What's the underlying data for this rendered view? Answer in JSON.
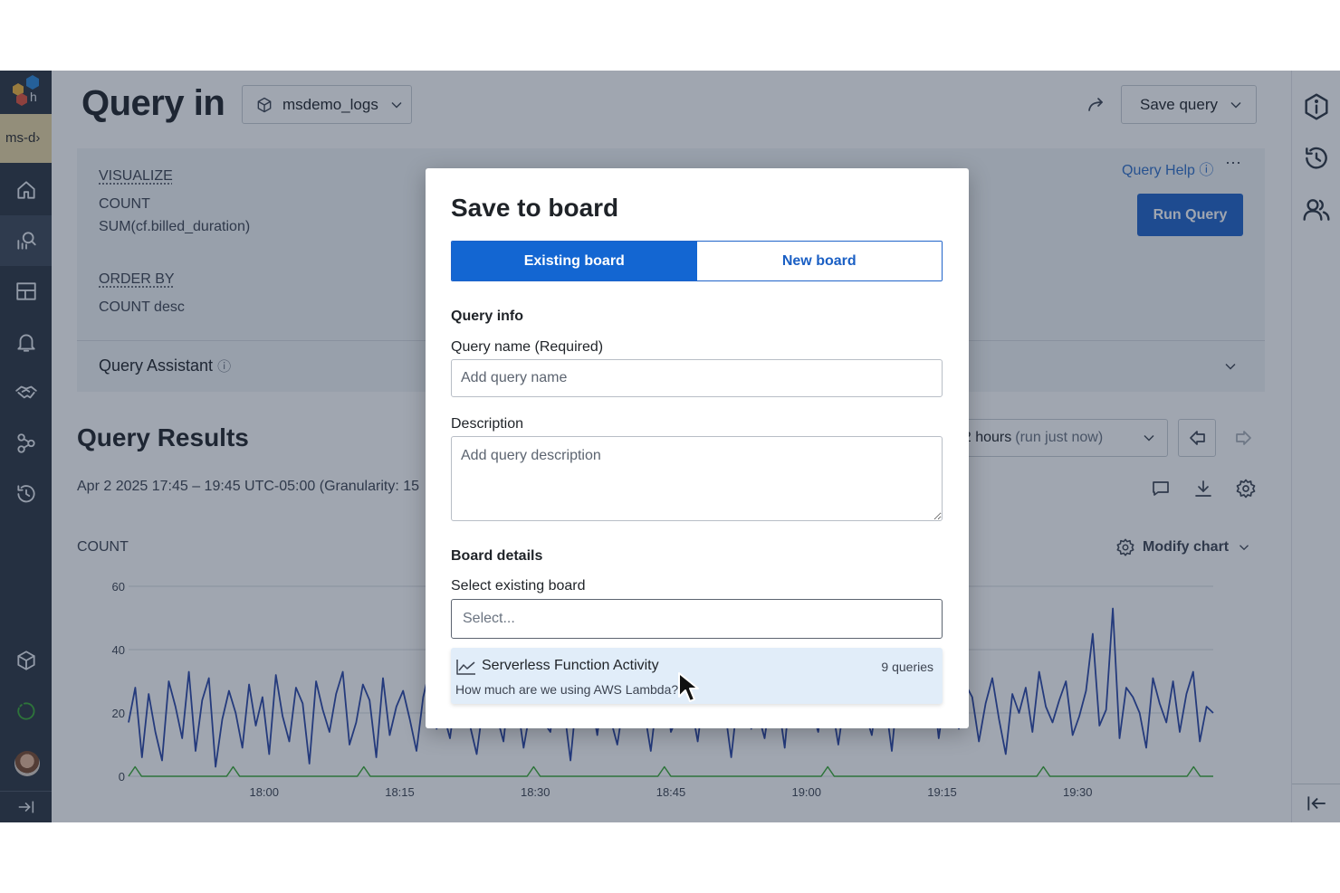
{
  "brand": {
    "env_tag": "ms-d"
  },
  "header": {
    "title": "Query in",
    "dataset": "msdemo_logs",
    "save_query_label": "Save query"
  },
  "builder": {
    "visualize_label": "VISUALIZE",
    "visualize_values": [
      "COUNT",
      "SUM(cf.billed_duration)"
    ],
    "order_by_label": "ORDER BY",
    "order_by_values": [
      "COUNT desc"
    ],
    "query_help_label": "Query Help",
    "run_query_label": "Run Query",
    "query_assistant_label": "Query Assistant"
  },
  "results": {
    "title": "Query Results",
    "range_text": "Apr 2 2025 17:45 – 19:45 UTC-05:00 (Granularity: 15",
    "time_range": "t 2 hours",
    "time_range_note": "(run just now)",
    "count_label": "COUNT",
    "modify_chart_label": "Modify chart"
  },
  "modal": {
    "title": "Save to board",
    "tabs": [
      "Existing board",
      "New board"
    ],
    "active_tab": "Existing board",
    "query_info_heading": "Query info",
    "query_name_label": "Query name (Required)",
    "query_name_placeholder": "Add query name",
    "description_label": "Description",
    "description_placeholder": "Add query description",
    "board_details_heading": "Board details",
    "select_board_label": "Select existing board",
    "select_placeholder": "Select...",
    "options": [
      {
        "name": "Serverless Function Activity",
        "count": "9 queries",
        "description": "How much are we using AWS Lambda?"
      }
    ]
  },
  "colors": {
    "primary": "#1366d2",
    "nav_bg": "#2b3440",
    "env_tag_bg": "#e9d6a3",
    "series_count": "#2a46a6",
    "series_sum": "#3aa935",
    "overlay": "rgba(29,42,66,0.42)"
  },
  "chart_data": {
    "type": "line",
    "title": "",
    "xlabel": "",
    "ylabel": "COUNT",
    "x_ticks": [
      "18:00",
      "18:15",
      "18:30",
      "18:45",
      "19:00",
      "19:15",
      "19:30"
    ],
    "y_ticks": [
      0,
      20,
      40,
      60
    ],
    "ylim": [
      0,
      60
    ],
    "x_range": [
      "17:45",
      "19:45"
    ],
    "grid": true,
    "series": [
      {
        "color": "#2a46a6",
        "values": [
          17,
          28,
          6,
          26,
          14,
          5,
          30,
          22,
          12,
          33,
          8,
          24,
          31,
          3,
          18,
          27,
          20,
          9,
          29,
          16,
          25,
          7,
          32,
          19,
          11,
          28,
          23,
          4,
          30,
          21,
          14,
          26,
          33,
          10,
          17,
          29,
          24,
          6,
          31,
          13,
          22,
          27,
          18,
          8,
          25,
          34,
          15,
          20,
          12,
          28,
          30,
          16,
          7,
          23,
          26,
          19,
          11,
          31,
          24,
          9,
          21,
          28,
          17,
          14,
          33,
          22,
          5,
          27,
          19,
          25,
          13,
          30,
          18,
          10,
          24,
          29,
          16,
          21,
          8,
          26,
          31,
          14,
          19,
          27,
          23,
          11,
          28,
          17,
          33,
          22,
          6,
          25,
          30,
          15,
          20,
          12,
          27,
          24,
          9,
          32,
          18,
          26,
          21,
          14,
          29,
          23,
          10,
          25,
          31,
          17,
          20,
          13,
          28,
          24,
          8,
          30,
          19,
          26,
          16,
          22,
          32,
          12,
          27,
          21,
          15,
          29,
          25,
          11,
          23,
          31,
          18,
          7,
          26,
          20,
          28,
          14,
          33,
          22,
          17,
          24,
          30,
          13,
          19,
          27,
          45,
          16,
          21,
          53,
          12,
          28,
          25,
          20,
          9,
          31,
          23,
          17,
          30,
          14,
          26,
          33,
          11,
          22,
          20
        ]
      },
      {
        "color": "#3aa935",
        "values": [
          0,
          3,
          0,
          0,
          0,
          0,
          0,
          0,
          0,
          0,
          0,
          0,
          0,
          0,
          0,
          0,
          3,
          0,
          0,
          0,
          0,
          0,
          0,
          0,
          0,
          0,
          0,
          0,
          0,
          0,
          0,
          0,
          0,
          0,
          0,
          0,
          3,
          0,
          0,
          0,
          0,
          0,
          0,
          0,
          0,
          0,
          0,
          0,
          0,
          0,
          0,
          0,
          0,
          0,
          0,
          0,
          0,
          0,
          0,
          0,
          0,
          0,
          3,
          0,
          0,
          0,
          0,
          0,
          0,
          0,
          0,
          0,
          0,
          0,
          0,
          0,
          0,
          0,
          0,
          0,
          0,
          0,
          3,
          0,
          0,
          0,
          0,
          0,
          0,
          0,
          0,
          0,
          0,
          0,
          0,
          0,
          0,
          0,
          0,
          0,
          0,
          0,
          0,
          0,
          0,
          0,
          0,
          3,
          0,
          0,
          0,
          0,
          0,
          0,
          0,
          0,
          0,
          0,
          0,
          0,
          0,
          0,
          0,
          0,
          0,
          0,
          0,
          0,
          0,
          0,
          0,
          0,
          0,
          0,
          0,
          0,
          0,
          0,
          0,
          0,
          3,
          0,
          0,
          0,
          0,
          0,
          0,
          0,
          0,
          0,
          0,
          0,
          0,
          0,
          0,
          0,
          0,
          0,
          0,
          0,
          0,
          0,
          0,
          3,
          0,
          0,
          0
        ]
      }
    ]
  }
}
